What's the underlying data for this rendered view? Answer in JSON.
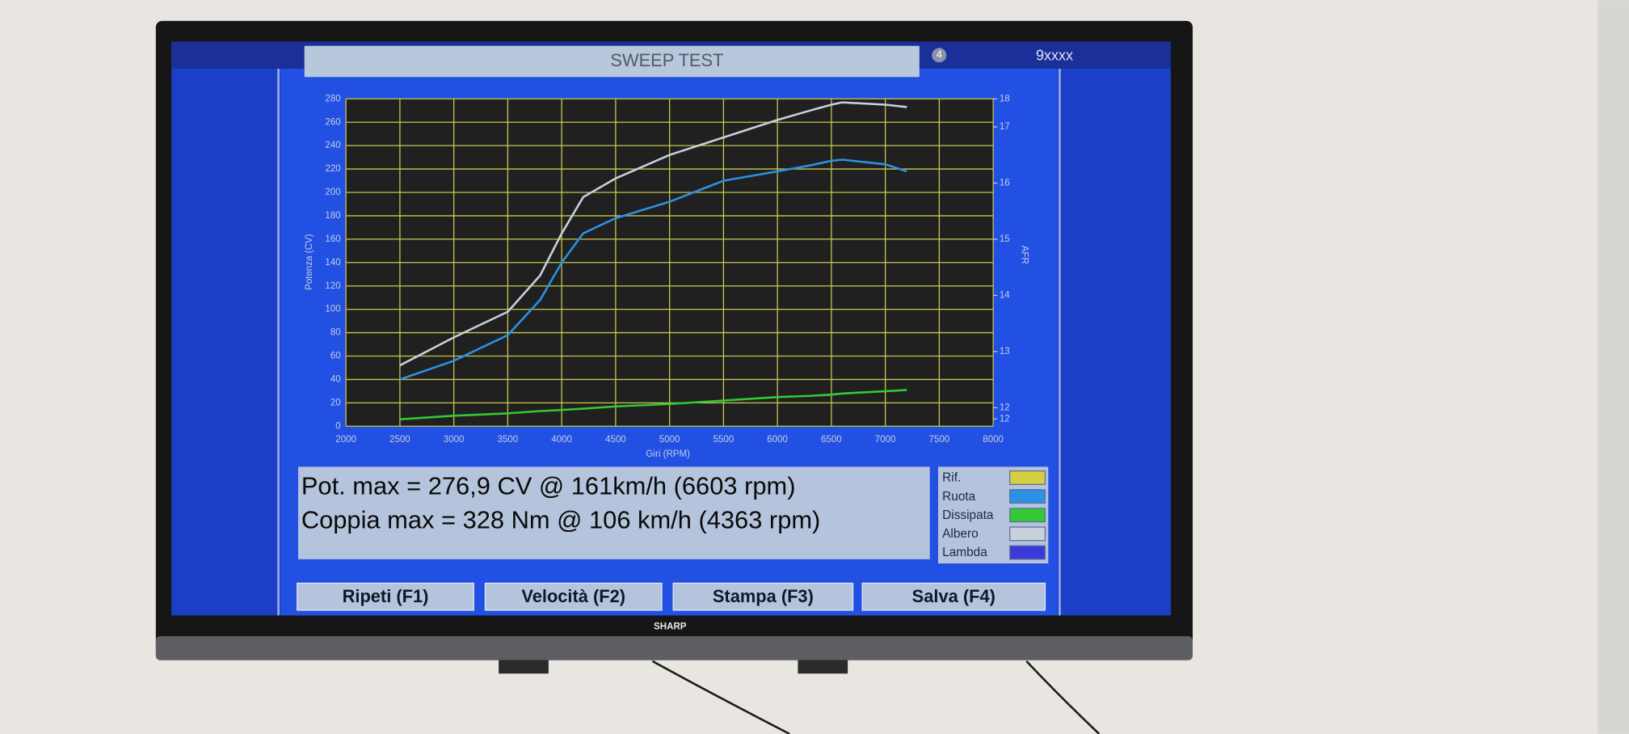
{
  "header": {
    "title": "SWEEP TEST",
    "badge": "4",
    "code": "9xxxx"
  },
  "chart_data": {
    "type": "line",
    "x_label": "Giri (RPM)",
    "y_label": "Potenza (CV)",
    "y2_label": "AFR",
    "x": [
      2500,
      3000,
      3500,
      3800,
      4000,
      4200,
      4500,
      5000,
      5500,
      6000,
      6300,
      6500,
      6600,
      7000,
      7200
    ],
    "xlim": [
      2000,
      8000
    ],
    "xticks": [
      2000,
      2500,
      3000,
      3500,
      4000,
      4500,
      5000,
      5500,
      6000,
      6500,
      7000,
      7500,
      8000
    ],
    "ylim": [
      0,
      280
    ],
    "yticks": [
      0,
      20,
      40,
      60,
      80,
      100,
      120,
      140,
      160,
      180,
      200,
      220,
      240,
      260,
      280
    ],
    "y2lim": [
      11.67,
      17.5
    ],
    "y2ticks": [
      {
        "value": 11.8,
        "label": "12"
      },
      12,
      13,
      14,
      15,
      16,
      17,
      {
        "value": 17.5,
        "label": "18"
      }
    ],
    "grid": true,
    "series": [
      {
        "name": "Rif.",
        "color": "#d6d040"
      },
      {
        "name": "Ruota",
        "color": "#2c90e4",
        "values": [
          40,
          56,
          78,
          108,
          140,
          165,
          178,
          192,
          210,
          218,
          223,
          227,
          228,
          224,
          218
        ]
      },
      {
        "name": "Dissipata",
        "color": "#34c834",
        "values": [
          6,
          9,
          11,
          13,
          14,
          15,
          17,
          19,
          22,
          25,
          26,
          27,
          28,
          30,
          31
        ]
      },
      {
        "name": "Albero",
        "color": "#c8d0dc",
        "values": [
          52,
          76,
          98,
          129,
          165,
          196,
          212,
          232,
          247,
          262,
          270,
          275,
          277,
          275,
          273
        ]
      },
      {
        "name": "Lambda",
        "color": "#3a3ad8"
      }
    ]
  },
  "summary": [
    "Pot. max = 276,9 CV @ 161km/h (6603 rpm)",
    "Coppia max = 328 Nm @ 106 km/h (4363 rpm)"
  ],
  "buttons": [
    "Ripeti (F1)",
    "Velocità (F2)",
    "Stampa (F3)",
    "Salva (F4)"
  ],
  "brand": "SHARP"
}
